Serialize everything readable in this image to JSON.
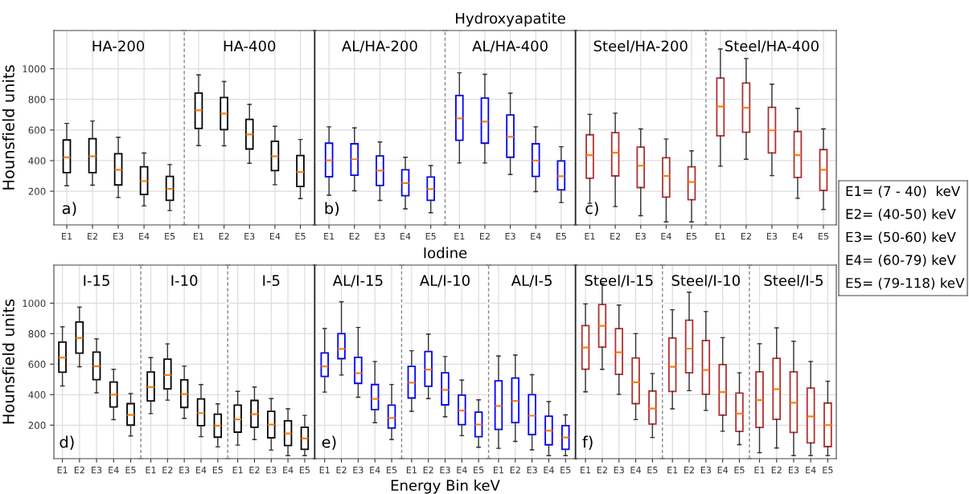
{
  "chart_data": [
    {
      "type": "box",
      "title": "HA-200",
      "ylabel": "Hounsfield units",
      "annotations": [
        "a)"
      ],
      "categories": [
        "E1",
        "E2",
        "E3",
        "E4",
        "E5"
      ],
      "ylim": [
        -20,
        1250
      ],
      "yticks": [
        200,
        400,
        600,
        800,
        1000
      ],
      "grid": true,
      "series": [
        {
          "color": "#000000",
          "boxes": [
            {
              "low": 236,
              "q1": 322,
              "median": 422,
              "q3": 535,
              "high": 643
            },
            {
              "low": 240,
              "q1": 322,
              "median": 428,
              "q3": 543,
              "high": 659
            },
            {
              "low": 159,
              "q1": 241,
              "median": 340,
              "q3": 445,
              "high": 552
            },
            {
              "low": 104,
              "q1": 179,
              "median": 266,
              "q3": 360,
              "high": 450
            },
            {
              "low": 74,
              "q1": 141,
              "median": 216,
              "q3": 297,
              "high": 374
            }
          ]
        }
      ]
    },
    {
      "type": "box",
      "title": "HA-400",
      "tick_labels": "x",
      "categories": [
        "E1",
        "E2",
        "E3",
        "E4",
        "E5"
      ],
      "ylim": [
        -20,
        1250
      ],
      "yticks": [
        200,
        400,
        600,
        800,
        1000
      ],
      "grid": true,
      "series": [
        {
          "color": "#000000",
          "boxes": [
            {
              "low": 498,
              "q1": 610,
              "median": 728,
              "q3": 841,
              "high": 960
            },
            {
              "low": 497,
              "q1": 603,
              "median": 707,
              "q3": 812,
              "high": 917
            },
            {
              "low": 383,
              "q1": 476,
              "median": 571,
              "q3": 669,
              "high": 767
            },
            {
              "low": 243,
              "q1": 335,
              "median": 428,
              "q3": 526,
              "high": 624
            },
            {
              "low": 152,
              "q1": 231,
              "median": 326,
              "q3": 433,
              "high": 538
            }
          ]
        }
      ]
    },
    {
      "type": "box",
      "title": "AL/HA-200",
      "tick_labels": "x",
      "annotations": [
        "b)"
      ],
      "categories": [
        "E1",
        "E2",
        "E3",
        "E4",
        "E5"
      ],
      "ylim": [
        -20,
        1250
      ],
      "yticks": [
        200,
        400,
        600,
        800,
        1000
      ],
      "grid": true,
      "series": [
        {
          "color": "#0000ff",
          "boxes": [
            {
              "low": 174,
              "q1": 295,
              "median": 402,
              "q3": 514,
              "high": 621
            },
            {
              "low": 203,
              "q1": 305,
              "median": 409,
              "q3": 510,
              "high": 614
            },
            {
              "low": 140,
              "q1": 238,
              "median": 335,
              "q3": 431,
              "high": 522
            },
            {
              "low": 85,
              "q1": 171,
              "median": 254,
              "q3": 340,
              "high": 422
            },
            {
              "low": 60,
              "q1": 141,
              "median": 214,
              "q3": 293,
              "high": 367
            }
          ]
        }
      ]
    },
    {
      "type": "box",
      "subtitle": "Hydroxyapatite",
      "title": "AL/HA-400",
      "tick_labels": "x",
      "categories": [
        "E1",
        "E2",
        "E3",
        "E4",
        "E5"
      ],
      "ylim": [
        -20,
        1250
      ],
      "yticks": [
        200,
        400,
        600,
        800,
        1000
      ],
      "grid": true,
      "series": [
        {
          "color": "#0000ff",
          "boxes": [
            {
              "low": 385,
              "q1": 533,
              "median": 676,
              "q3": 826,
              "high": 974
            },
            {
              "low": 385,
              "q1": 514,
              "median": 655,
              "q3": 809,
              "high": 964
            },
            {
              "low": 309,
              "q1": 422,
              "median": 555,
              "q3": 698,
              "high": 841
            },
            {
              "low": 198,
              "q1": 297,
              "median": 400,
              "q3": 510,
              "high": 621
            },
            {
              "low": 126,
              "q1": 209,
              "median": 298,
              "q3": 398,
              "high": 491
            }
          ]
        }
      ]
    },
    {
      "type": "box",
      "title": "Steel/HA-200",
      "tick_labels": "x",
      "annotations": [
        "c)"
      ],
      "categories": [
        "E1",
        "E2",
        "E3",
        "E4",
        "E5"
      ],
      "ylim": [
        -20,
        1250
      ],
      "yticks": [
        200,
        400,
        600,
        800,
        1000
      ],
      "grid": true,
      "series": [
        {
          "color": "#b03030",
          "boxes": [
            {
              "low": 121,
              "q1": 285,
              "median": 436,
              "q3": 569,
              "high": 702
            },
            {
              "low": 100,
              "q1": 300,
              "median": 452,
              "q3": 583,
              "high": 710
            },
            {
              "low": 40,
              "q1": 224,
              "median": 367,
              "q3": 488,
              "high": 607
            },
            {
              "low": 0,
              "q1": 162,
              "median": 300,
              "q3": 419,
              "high": 541
            },
            {
              "low": 0,
              "q1": 145,
              "median": 260,
              "q3": 360,
              "high": 464
            }
          ]
        }
      ]
    },
    {
      "type": "box",
      "title": "Steel/HA-400",
      "tick_labels": "x",
      "categories": [
        "E1",
        "E2",
        "E3",
        "E4",
        "E5"
      ],
      "ylim": [
        -20,
        1250
      ],
      "yticks": [
        200,
        400,
        600,
        800,
        1000
      ],
      "grid": true,
      "series": [
        {
          "color": "#b03030",
          "boxes": [
            {
              "low": 364,
              "q1": 562,
              "median": 753,
              "q3": 940,
              "high": 1129
            },
            {
              "low": 409,
              "q1": 585,
              "median": 745,
              "q3": 907,
              "high": 1067
            },
            {
              "low": 302,
              "q1": 450,
              "median": 598,
              "q3": 748,
              "high": 900
            },
            {
              "low": 154,
              "q1": 290,
              "median": 436,
              "q3": 590,
              "high": 741
            },
            {
              "low": 81,
              "q1": 205,
              "median": 340,
              "q3": 472,
              "high": 607
            }
          ]
        }
      ]
    },
    {
      "type": "box",
      "title": "I-15",
      "ylabel": "Hounsfield units",
      "annotations": [
        "d)"
      ],
      "categories": [
        "E1",
        "E2",
        "E3",
        "E4",
        "E5"
      ],
      "ylim": [
        -20,
        1250
      ],
      "yticks": [
        200,
        400,
        600,
        800,
        1000
      ],
      "grid": true,
      "series": [
        {
          "color": "#000000",
          "boxes": [
            {
              "low": 457,
              "q1": 547,
              "median": 643,
              "q3": 745,
              "high": 845
            },
            {
              "low": 583,
              "q1": 672,
              "median": 771,
              "q3": 876,
              "high": 974
            },
            {
              "low": 412,
              "q1": 498,
              "median": 586,
              "q3": 679,
              "high": 766
            },
            {
              "low": 236,
              "q1": 319,
              "median": 400,
              "q3": 483,
              "high": 566
            },
            {
              "low": 129,
              "q1": 200,
              "median": 267,
              "q3": 341,
              "high": 407
            }
          ]
        }
      ]
    },
    {
      "type": "box",
      "title": "I-10",
      "tick_labels": "x",
      "categories": [
        "E1",
        "E2",
        "E3",
        "E4",
        "E5"
      ],
      "ylim": [
        -20,
        1250
      ],
      "yticks": [
        200,
        400,
        600,
        800,
        1000
      ],
      "grid": true,
      "series": [
        {
          "color": "#000000",
          "boxes": [
            {
              "low": 276,
              "q1": 359,
              "median": 450,
              "q3": 548,
              "high": 643
            },
            {
              "low": 364,
              "q1": 438,
              "median": 529,
              "q3": 633,
              "high": 733
            },
            {
              "low": 245,
              "q1": 316,
              "median": 403,
              "q3": 497,
              "high": 588
            },
            {
              "low": 124,
              "q1": 197,
              "median": 279,
              "q3": 372,
              "high": 466
            },
            {
              "low": 57,
              "q1": 121,
              "median": 197,
              "q3": 272,
              "high": 340
            }
          ]
        }
      ]
    },
    {
      "type": "box",
      "title": "I-5",
      "tick_labels": "x",
      "categories": [
        "E1",
        "E2",
        "E3",
        "E4",
        "E5"
      ],
      "ylim": [
        -20,
        1250
      ],
      "yticks": [
        200,
        400,
        600,
        800,
        1000
      ],
      "grid": true,
      "series": [
        {
          "color": "#000000",
          "boxes": [
            {
              "low": 69,
              "q1": 154,
              "median": 238,
              "q3": 331,
              "high": 421
            },
            {
              "low": 105,
              "q1": 186,
              "median": 272,
              "q3": 362,
              "high": 450
            },
            {
              "low": 36,
              "q1": 117,
              "median": 203,
              "q3": 290,
              "high": 374
            },
            {
              "low": 0,
              "q1": 66,
              "median": 145,
              "q3": 228,
              "high": 307
            },
            {
              "low": 0,
              "q1": 41,
              "median": 112,
              "q3": 186,
              "high": 264
            }
          ]
        }
      ]
    },
    {
      "type": "box",
      "title": "AL/I-15",
      "tick_labels": "x",
      "annotations": [
        "e)"
      ],
      "categories": [
        "E1",
        "E2",
        "E3",
        "E4",
        "E5"
      ],
      "ylim": [
        -20,
        1250
      ],
      "yticks": [
        200,
        400,
        600,
        800,
        1000
      ],
      "grid": true,
      "series": [
        {
          "color": "#0000ff",
          "boxes": [
            {
              "low": 417,
              "q1": 519,
              "median": 585,
              "q3": 674,
              "high": 834
            },
            {
              "low": 529,
              "q1": 636,
              "median": 700,
              "q3": 800,
              "high": 1009
            },
            {
              "low": 383,
              "q1": 474,
              "median": 541,
              "q3": 645,
              "high": 841
            },
            {
              "low": 216,
              "q1": 302,
              "median": 372,
              "q3": 466,
              "high": 617
            },
            {
              "low": 105,
              "q1": 181,
              "median": 247,
              "q3": 331,
              "high": 467
            }
          ]
        }
      ]
    },
    {
      "type": "box",
      "subtitle": "Iodine",
      "title": "AL/I-10",
      "tick_labels": "x",
      "xlabel": "Energy Bin keV",
      "categories": [
        "E1",
        "E2",
        "E3",
        "E4",
        "E5"
      ],
      "ylim": [
        -20,
        1250
      ],
      "yticks": [
        200,
        400,
        600,
        800,
        1000
      ],
      "grid": true,
      "series": [
        {
          "color": "#0000ff",
          "boxes": [
            {
              "low": 291,
              "q1": 378,
              "median": 479,
              "q3": 585,
              "high": 688
            },
            {
              "low": 374,
              "q1": 455,
              "median": 564,
              "q3": 683,
              "high": 797
            },
            {
              "low": 255,
              "q1": 333,
              "median": 431,
              "q3": 543,
              "high": 650
            },
            {
              "low": 131,
              "q1": 203,
              "median": 295,
              "q3": 397,
              "high": 495
            },
            {
              "low": 55,
              "q1": 124,
              "median": 203,
              "q3": 285,
              "high": 366
            }
          ]
        }
      ]
    },
    {
      "type": "box",
      "title": "AL/I-5",
      "tick_labels": "x",
      "categories": [
        "E1",
        "E2",
        "E3",
        "E4",
        "E5"
      ],
      "ylim": [
        -20,
        1250
      ],
      "yticks": [
        200,
        400,
        600,
        800,
        1000
      ],
      "grid": true,
      "series": [
        {
          "color": "#0000ff",
          "boxes": [
            {
              "low": 48,
              "q1": 172,
              "median": 326,
              "q3": 491,
              "high": 653
            },
            {
              "low": 93,
              "q1": 216,
              "median": 359,
              "q3": 509,
              "high": 660
            },
            {
              "low": 38,
              "q1": 138,
              "median": 262,
              "q3": 400,
              "high": 531
            },
            {
              "low": 0,
              "q1": 71,
              "median": 164,
              "q3": 259,
              "high": 354
            },
            {
              "low": 0,
              "q1": 41,
              "median": 119,
              "q3": 197,
              "high": 267
            }
          ]
        }
      ]
    },
    {
      "type": "box",
      "title": "Steel/I-15",
      "tick_labels": "x",
      "annotations": [
        "f)"
      ],
      "categories": [
        "E1",
        "E2",
        "E3",
        "E4",
        "E5"
      ],
      "ylim": [
        -20,
        1250
      ],
      "yticks": [
        200,
        400,
        600,
        800,
        1000
      ],
      "grid": true,
      "series": [
        {
          "color": "#b03030",
          "boxes": [
            {
              "low": 419,
              "q1": 567,
              "median": 709,
              "q3": 853,
              "high": 995
            },
            {
              "low": 566,
              "q1": 712,
              "median": 852,
              "q3": 991,
              "high": 1126
            },
            {
              "low": 402,
              "q1": 533,
              "median": 678,
              "q3": 833,
              "high": 988
            },
            {
              "low": 236,
              "q1": 341,
              "median": 481,
              "q3": 641,
              "high": 800
            },
            {
              "low": 119,
              "q1": 207,
              "median": 309,
              "q3": 424,
              "high": 538
            }
          ]
        }
      ]
    },
    {
      "type": "box",
      "title": "Steel/I-10",
      "tick_labels": "x",
      "categories": [
        "E1",
        "E2",
        "E3",
        "E4",
        "E5"
      ],
      "ylim": [
        -20,
        1250
      ],
      "yticks": [
        200,
        400,
        600,
        800,
        1000
      ],
      "grid": true,
      "series": [
        {
          "color": "#b03030",
          "boxes": [
            {
              "low": 307,
              "q1": 421,
              "median": 583,
              "q3": 771,
              "high": 957
            },
            {
              "low": 426,
              "q1": 543,
              "median": 702,
              "q3": 888,
              "high": 1072
            },
            {
              "low": 297,
              "q1": 402,
              "median": 562,
              "q3": 755,
              "high": 945
            },
            {
              "low": 160,
              "q1": 266,
              "median": 417,
              "q3": 597,
              "high": 774
            },
            {
              "low": 72,
              "q1": 159,
              "median": 276,
              "q3": 410,
              "high": 543
            }
          ]
        }
      ]
    },
    {
      "type": "box",
      "title": "Steel/I-5",
      "tick_labels": "x",
      "categories": [
        "E1",
        "E2",
        "E3",
        "E4",
        "E5"
      ],
      "ylim": [
        -20,
        1250
      ],
      "yticks": [
        200,
        400,
        600,
        800,
        1000
      ],
      "grid": true,
      "series": [
        {
          "color": "#b03030",
          "boxes": [
            {
              "low": 19,
              "q1": 185,
              "median": 364,
              "q3": 550,
              "high": 734
            },
            {
              "low": 50,
              "q1": 238,
              "median": 436,
              "q3": 638,
              "high": 838
            },
            {
              "low": 0,
              "q1": 152,
              "median": 347,
              "q3": 550,
              "high": 750
            },
            {
              "low": 0,
              "q1": 83,
              "median": 257,
              "q3": 443,
              "high": 617
            },
            {
              "low": 0,
              "q1": 59,
              "median": 200,
              "q3": 345,
              "high": 488
            }
          ]
        }
      ]
    },
    {
      "type": "other",
      "annotations": [
        "E1= (7 - 40)  keV",
        "E2= (40-50) keV",
        "E3= (50-60) keV",
        "E4= (60-79) keV",
        "E5= (79-118) keV"
      ]
    }
  ]
}
